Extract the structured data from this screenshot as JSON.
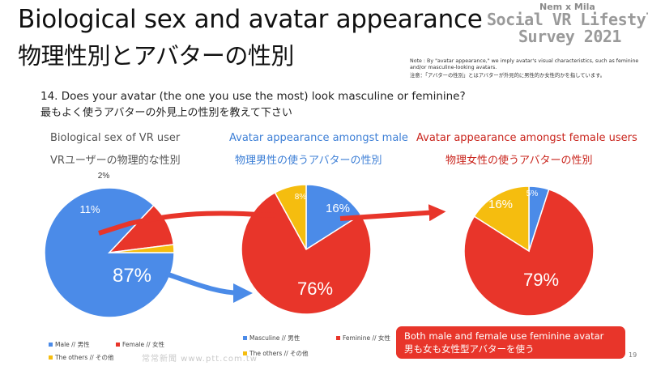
{
  "title": {
    "en": "Biological sex and avatar appearance",
    "jp": "物理性別とアバターの性別"
  },
  "brand": {
    "top": "Nem x Mila",
    "line1": "Social VR Lifestyle",
    "line2": "Survey 2021"
  },
  "note": {
    "en": "Note : By \"avatar appearance,\" we imply avatar's visual characteristics, such as feminine and/or masculine-looking avatars.",
    "jp": "注意：「アバターの性別」とはアバターが外見的に男性的か女性的かを指しています。"
  },
  "question": {
    "en": "14. Does your avatar (the one you use the most) look masculine or feminine?",
    "jp": "最もよく使うアバターの外見上の性別を教えて下さい"
  },
  "colors": {
    "blue": "#4b8be8",
    "red": "#e8352a",
    "yellow": "#f5bd0f",
    "callout": "#e8352a"
  },
  "chart_data": [
    {
      "type": "pie",
      "title": "Biological sex of VR user",
      "subtitle": "VRユーザーの物理的な性別",
      "categories": [
        "Male // 男性",
        "Female // 女性",
        "The others // その他"
      ],
      "values": [
        87,
        11,
        2
      ],
      "labels": [
        "87%",
        "11%",
        "2%"
      ],
      "colors": [
        "#4b8be8",
        "#e8352a",
        "#f5bd0f"
      ]
    },
    {
      "type": "pie",
      "title": "Avatar appearance amongst male",
      "subtitle": "物理男性の使うアバターの性別",
      "categories": [
        "Masculine // 男性",
        "Feminine // 女性",
        "The others // その他"
      ],
      "values": [
        16,
        76,
        8
      ],
      "labels": [
        "16%",
        "76%",
        "8%"
      ],
      "colors": [
        "#4b8be8",
        "#e8352a",
        "#f5bd0f"
      ]
    },
    {
      "type": "pie",
      "title": "Avatar appearance amongst female users",
      "subtitle": "物理女性の使うアバターの性別",
      "categories": [
        "Masculine // 男性",
        "Feminine // 女性",
        "The others // その他"
      ],
      "values": [
        5,
        79,
        16
      ],
      "labels": [
        "5%",
        "79%",
        "16%"
      ],
      "colors": [
        "#4b8be8",
        "#e8352a",
        "#f5bd0f"
      ]
    }
  ],
  "legend1": {
    "male": "Male // 男性",
    "female": "Female // 女性",
    "others": "The others // その他"
  },
  "legend2": {
    "masculine": "Masculine // 男性",
    "feminine": "Feminine // 女性",
    "others": "The others // その他"
  },
  "callout": {
    "en": "Both male and female use feminine avatar",
    "jp": "男も女も女性型アバターを使う"
  },
  "page_number": "19",
  "watermark": "常常新聞 www.ptt.com.tw"
}
